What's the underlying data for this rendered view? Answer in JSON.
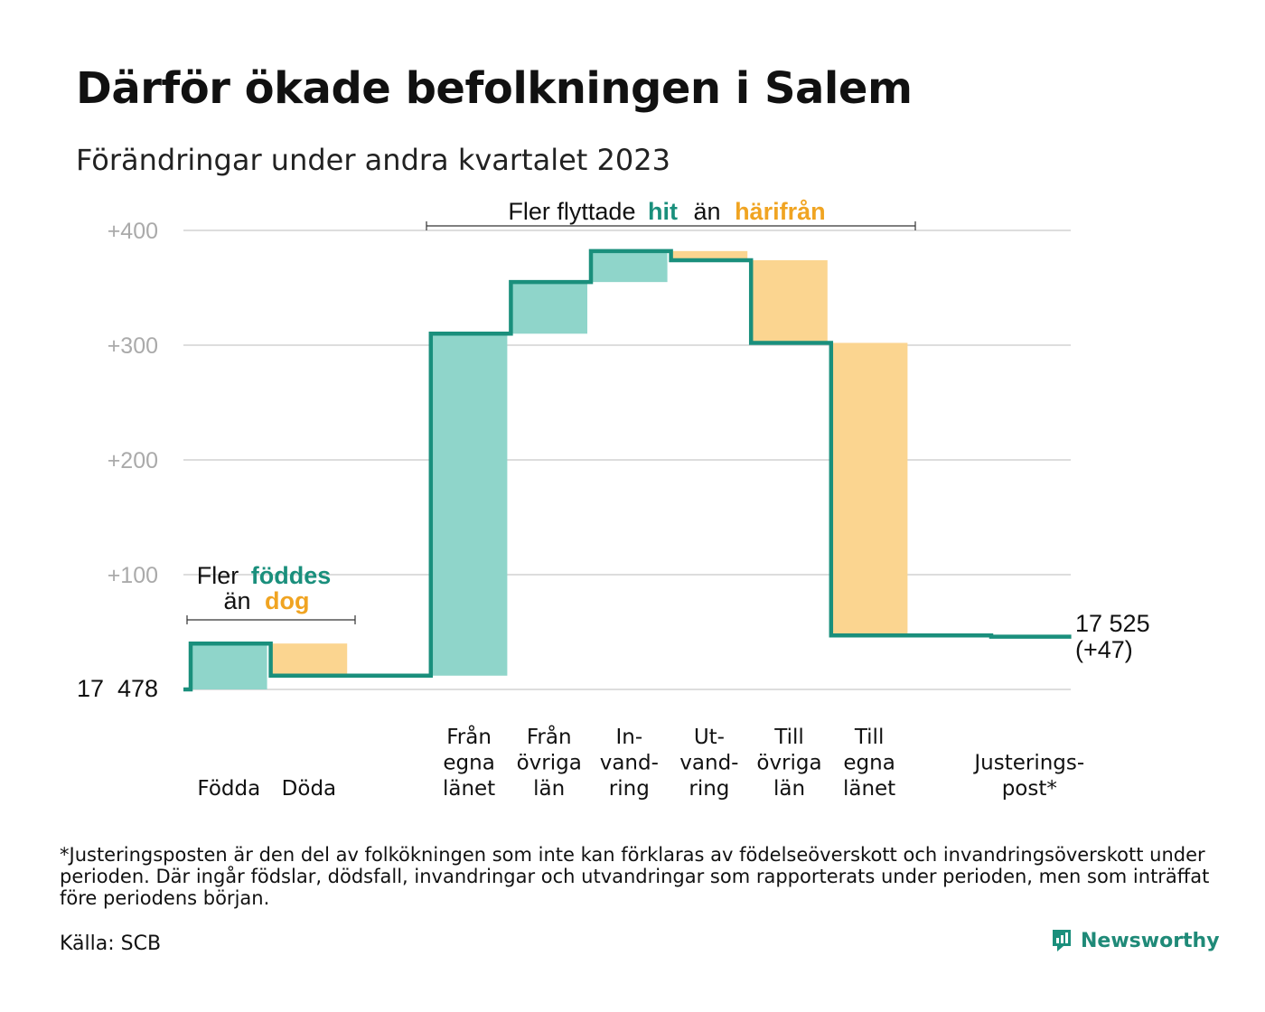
{
  "title": "Därför ökade befolkningen i Salem",
  "subtitle": "Förändringar under andra kvartalet 2023",
  "footnote": "*Justeringsposten är den del av folkökningen som inte kan förklaras av födelseöverskott och invandringsöverskott under perioden. Där ingår födslar, dödsfall, invandringar och utvandringar som rapporterats under perioden, men som inträffat före periodens början.",
  "source": "Källa: SCB",
  "brand": "Newsworthy",
  "colors": {
    "increase": "#8fd5ca",
    "decrease": "#fbd590",
    "line": "#1a8f7c",
    "teal_text": "#1a8f7c",
    "orange_text": "#f0a422",
    "grid": "#dddddd",
    "tick_text": "#aaaaaa"
  },
  "annotations": {
    "births": {
      "prefix": "Fler",
      "teal": "föddes",
      "line2_prefix": "än",
      "orange": "dog"
    },
    "migration": {
      "prefix": "Fler flyttade",
      "teal": "hit",
      "middle": "än",
      "orange": "härifrån"
    }
  },
  "chart_data": {
    "type": "waterfall",
    "start_label": "17  478",
    "start_value": 17478,
    "end_label_line1": "17 525",
    "end_label_line2": "(+47)",
    "end_value": 17525,
    "yticks": [
      {
        "value": 100,
        "label": "+100"
      },
      {
        "value": 200,
        "label": "+200"
      },
      {
        "value": 300,
        "label": "+300"
      },
      {
        "value": 400,
        "label": "+400"
      }
    ],
    "ylim": [
      0,
      400
    ],
    "grid": true,
    "steps": [
      {
        "label_lines": [
          "Födda"
        ],
        "change": 40,
        "direction": "increase"
      },
      {
        "label_lines": [
          "Döda"
        ],
        "change": -28,
        "direction": "decrease"
      },
      {
        "label_lines": [],
        "change": 0,
        "direction": "none"
      },
      {
        "label_lines": [
          "Från",
          "egna",
          "länet"
        ],
        "change": 298,
        "direction": "increase"
      },
      {
        "label_lines": [
          "Från",
          "övriga",
          "län"
        ],
        "change": 45,
        "direction": "increase"
      },
      {
        "label_lines": [
          "In-",
          "vand-",
          "ring"
        ],
        "change": 27,
        "direction": "increase"
      },
      {
        "label_lines": [
          "Ut-",
          "vand-",
          "ring"
        ],
        "change": -8,
        "direction": "decrease"
      },
      {
        "label_lines": [
          "Till",
          "övriga",
          "län"
        ],
        "change": -72,
        "direction": "decrease"
      },
      {
        "label_lines": [
          "Till",
          "egna",
          "länet"
        ],
        "change": -255,
        "direction": "decrease"
      },
      {
        "label_lines": [],
        "change": 0,
        "direction": "none"
      },
      {
        "label_lines": [
          "Justerings-",
          "post*"
        ],
        "change": -1,
        "direction": "decrease"
      }
    ]
  }
}
